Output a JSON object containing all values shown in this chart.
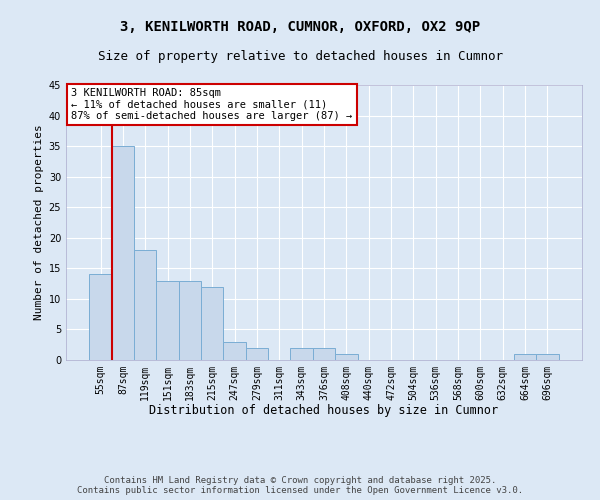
{
  "title": "3, KENILWORTH ROAD, CUMNOR, OXFORD, OX2 9QP",
  "subtitle": "Size of property relative to detached houses in Cumnor",
  "xlabel": "Distribution of detached houses by size in Cumnor",
  "ylabel": "Number of detached properties",
  "categories": [
    "55sqm",
    "87sqm",
    "119sqm",
    "151sqm",
    "183sqm",
    "215sqm",
    "247sqm",
    "279sqm",
    "311sqm",
    "343sqm",
    "376sqm",
    "408sqm",
    "440sqm",
    "472sqm",
    "504sqm",
    "536sqm",
    "568sqm",
    "600sqm",
    "632sqm",
    "664sqm",
    "696sqm"
  ],
  "values": [
    14,
    35,
    18,
    13,
    13,
    12,
    3,
    2,
    0,
    2,
    2,
    1,
    0,
    0,
    0,
    0,
    0,
    0,
    0,
    1,
    1
  ],
  "bar_color": "#c8d8eb",
  "bar_edge_color": "#7aadd4",
  "vline_color": "#cc0000",
  "vline_index": 1,
  "annotation_text": "3 KENILWORTH ROAD: 85sqm\n← 11% of detached houses are smaller (11)\n87% of semi-detached houses are larger (87) →",
  "annotation_box_facecolor": "#ffffff",
  "annotation_box_edgecolor": "#cc0000",
  "ylim": [
    0,
    45
  ],
  "yticks": [
    0,
    5,
    10,
    15,
    20,
    25,
    30,
    35,
    40,
    45
  ],
  "background_color": "#dce8f5",
  "plot_bg_color": "#dce8f5",
  "grid_color": "#ffffff",
  "footer_text": "Contains HM Land Registry data © Crown copyright and database right 2025.\nContains public sector information licensed under the Open Government Licence v3.0.",
  "title_fontsize": 10,
  "subtitle_fontsize": 9,
  "xlabel_fontsize": 8.5,
  "ylabel_fontsize": 8,
  "tick_fontsize": 7,
  "annotation_fontsize": 7.5,
  "footer_fontsize": 6.5
}
